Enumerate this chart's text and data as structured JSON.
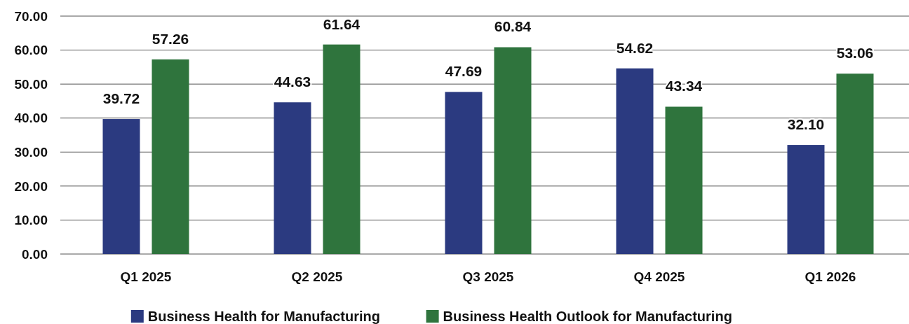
{
  "chart_data": {
    "type": "bar",
    "categories": [
      "Q1 2025",
      "Q2 2025",
      "Q3 2025",
      "Q4 2025",
      "Q1 2026"
    ],
    "series": [
      {
        "name": "Business Health for Manufacturing",
        "color": "#2b3a80",
        "values": [
          39.72,
          44.63,
          47.69,
          54.62,
          32.1
        ],
        "value_labels": [
          "39.72",
          "44.63",
          "47.69",
          "54.62",
          "32.10"
        ]
      },
      {
        "name": "Business Health Outlook for Manufacturing",
        "color": "#2f743d",
        "values": [
          57.26,
          61.64,
          60.84,
          43.34,
          53.06
        ],
        "value_labels": [
          "57.26",
          "61.64",
          "60.84",
          "43.34",
          "53.06"
        ]
      }
    ],
    "ylim": [
      0,
      70
    ],
    "yticks": [
      {
        "value": 0,
        "label": "0.00"
      },
      {
        "value": 10,
        "label": "10.00"
      },
      {
        "value": 20,
        "label": "20.00"
      },
      {
        "value": 30,
        "label": "30.00"
      },
      {
        "value": 40,
        "label": "40.00"
      },
      {
        "value": 50,
        "label": "50.00"
      },
      {
        "value": 60,
        "label": "60.00"
      },
      {
        "value": 70,
        "label": "70.00"
      }
    ],
    "grid": "y",
    "legend": "bottom"
  }
}
